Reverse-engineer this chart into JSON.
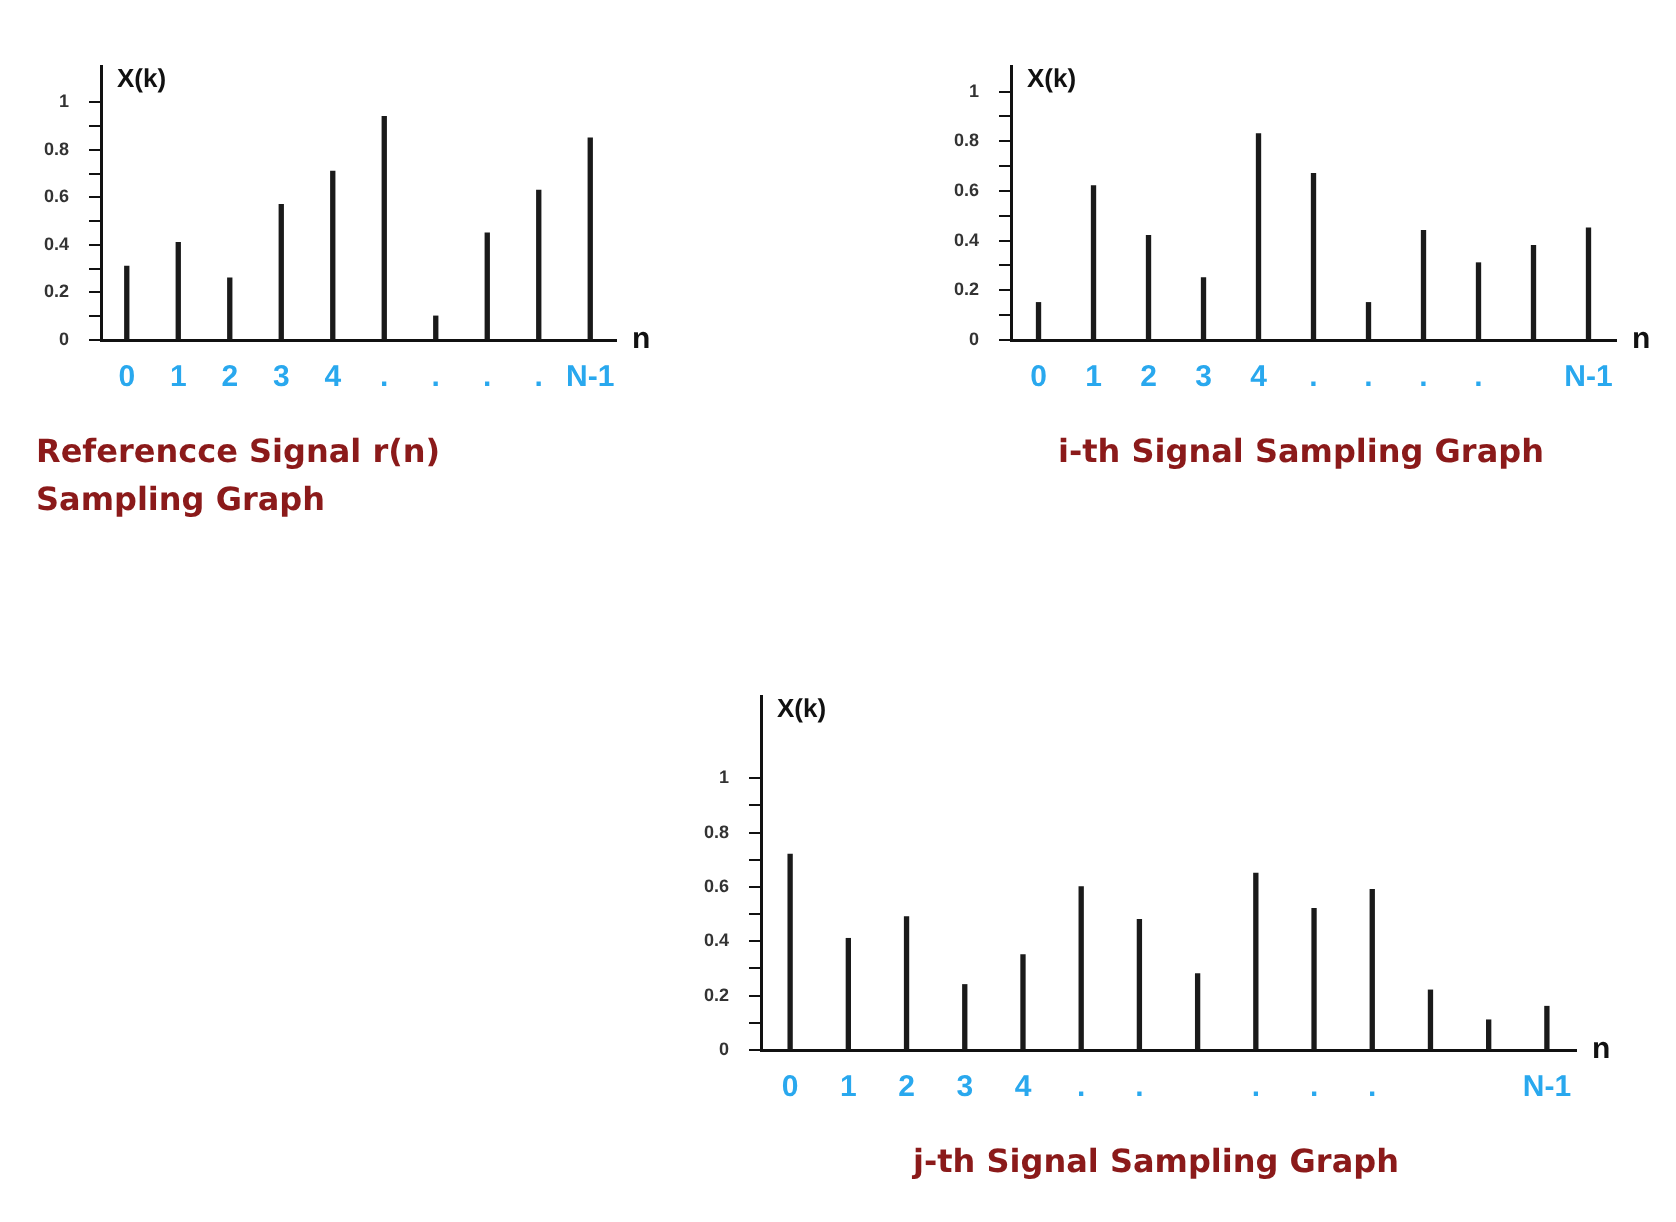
{
  "chart_data": [
    {
      "type": "bar",
      "title": "Referencce Signal r(n) Sampling Graph",
      "xlabel": "n",
      "ylabel": "X(k)",
      "categories": [
        "0",
        "1",
        "2",
        "3",
        "4",
        ".",
        ".",
        ".",
        ".",
        "N-1"
      ],
      "values": [
        0.31,
        0.41,
        0.26,
        0.57,
        0.71,
        0.94,
        0.1,
        0.45,
        0.63,
        0.85
      ],
      "color": "#1a1a1a",
      "ylim": [
        0,
        1.15
      ],
      "yticks": [
        0,
        {
          "value": 0.1,
          "label": null
        },
        0.2,
        {
          "value": 0.3,
          "label": null
        },
        0.4,
        {
          "value": 0.5,
          "label": null
        },
        0.6,
        {
          "value": 0.7,
          "label": null
        },
        0.8,
        {
          "value": 0.9,
          "label": null
        },
        1
      ],
      "grid": false
    },
    {
      "type": "bar",
      "title": "i-th Signal Sampling Graph",
      "xlabel": "n",
      "ylabel": "X(k)",
      "categories": [
        "0",
        "1",
        "2",
        "3",
        "4",
        ".",
        ".",
        ".",
        ".",
        null,
        "N-1"
      ],
      "values": [
        0.15,
        0.62,
        0.42,
        0.25,
        0.83,
        0.67,
        0.15,
        0.44,
        0.31,
        0.38,
        0.45
      ],
      "color": "#1a1a1a",
      "ylim": [
        0,
        1.1
      ],
      "yticks": [
        0,
        {
          "value": 0.1,
          "label": null
        },
        0.2,
        {
          "value": 0.3,
          "label": null
        },
        0.4,
        {
          "value": 0.5,
          "label": null
        },
        0.6,
        {
          "value": 0.7,
          "label": null
        },
        0.8,
        {
          "value": 0.9,
          "label": null
        },
        1
      ],
      "grid": false
    },
    {
      "type": "bar",
      "title": "j-th Signal Sampling Graph",
      "xlabel": "n",
      "ylabel": "X(k)",
      "categories": [
        "0",
        "1",
        "2",
        "3",
        "4",
        ".",
        ".",
        null,
        ".",
        ".",
        ".",
        null,
        null,
        "N-1"
      ],
      "values": [
        0.72,
        0.41,
        0.49,
        0.24,
        0.35,
        0.6,
        0.48,
        0.28,
        0.65,
        0.52,
        0.59,
        0.22,
        0.11,
        0.16
      ],
      "color": "#1a1a1a",
      "ylim": [
        0,
        1.3
      ],
      "yticks": [
        0,
        {
          "value": 0.1,
          "label": null
        },
        0.2,
        {
          "value": 0.3,
          "label": null
        },
        0.4,
        {
          "value": 0.5,
          "label": null
        },
        0.6,
        {
          "value": 0.7,
          "label": null
        },
        0.8,
        {
          "value": 0.9,
          "label": null
        },
        1
      ],
      "grid": false
    }
  ]
}
